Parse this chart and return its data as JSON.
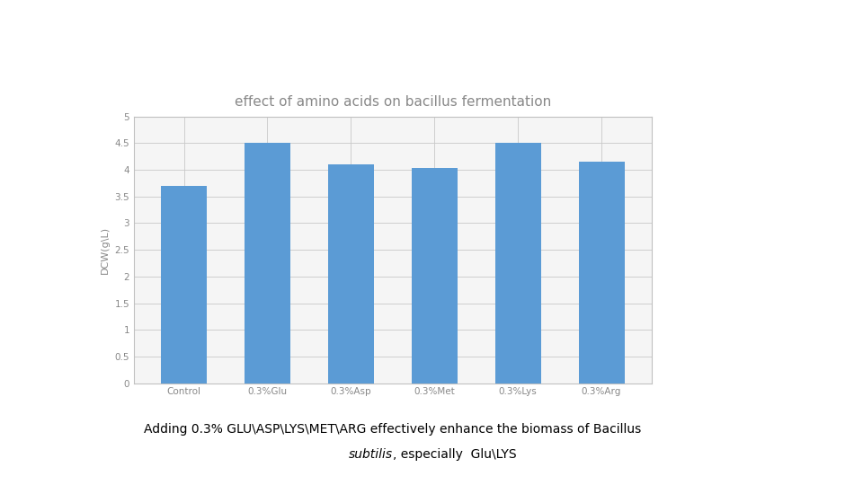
{
  "title": "effect of amino acids on bacillus fermentation",
  "categories": [
    "Control",
    "0.3%Glu",
    "0.3%Asp",
    "0.3%Met",
    "0.3%Lys",
    "0.3%Arg"
  ],
  "values": [
    3.7,
    4.5,
    4.1,
    4.03,
    4.5,
    4.15
  ],
  "bar_color": "#5B9BD5",
  "ylabel": "DCW(g\\L)",
  "ylim": [
    0,
    5
  ],
  "yticks": [
    0,
    0.5,
    1,
    1.5,
    2,
    2.5,
    3,
    3.5,
    4,
    4.5,
    5
  ],
  "title_fontsize": 11,
  "axis_fontsize": 8,
  "tick_fontsize": 7.5,
  "annotation_line1": "Adding 0.3% GLU\\ASP\\LYS\\MET\\ARG effectively enhance the biomass of Bacillus",
  "annotation_line2_rest": ", especially  Glu\\LYS",
  "background_color": "#ffffff",
  "chart_bg_color": "#f5f5f5",
  "grid_color": "#c8c8c8",
  "border_color": "#c0c0c0",
  "text_color_gray": "#888888",
  "text_color_dark": "#333333"
}
